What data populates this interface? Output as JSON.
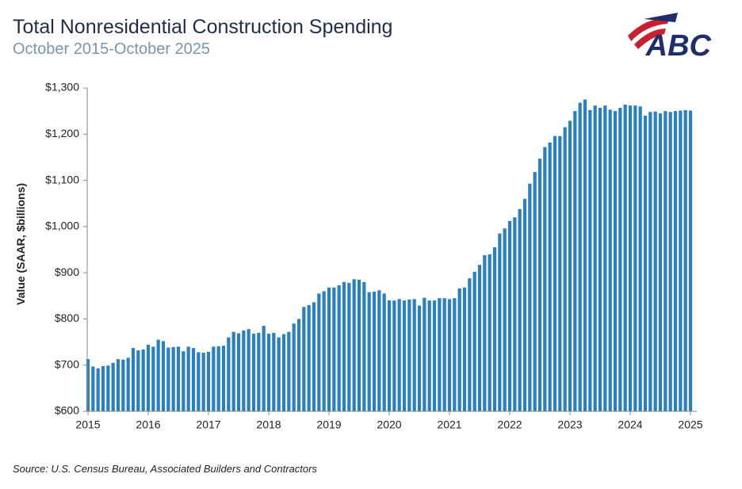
{
  "chart_data": {
    "type": "bar",
    "title": "Total Nonresidential Construction Spending",
    "subtitle": "October 2015-October 2025",
    "y_label": "Value (SAAR, $billions)",
    "source": "Source: U.S. Census Bureau, Associated Builders and Contractors",
    "logo": "ABC",
    "color": "#2a7fbf",
    "categories": [
      "2015",
      null,
      null,
      null,
      null,
      null,
      null,
      null,
      null,
      null,
      null,
      null,
      "2016",
      null,
      null,
      null,
      null,
      null,
      null,
      null,
      null,
      null,
      null,
      null,
      "2017",
      null,
      null,
      null,
      null,
      null,
      null,
      null,
      null,
      null,
      null,
      null,
      "2018",
      null,
      null,
      null,
      null,
      null,
      null,
      null,
      null,
      null,
      null,
      null,
      "2019",
      null,
      null,
      null,
      null,
      null,
      null,
      null,
      null,
      null,
      null,
      null,
      "2020",
      null,
      null,
      null,
      null,
      null,
      null,
      null,
      null,
      null,
      null,
      null,
      "2021",
      null,
      null,
      null,
      null,
      null,
      null,
      null,
      null,
      null,
      null,
      null,
      "2022",
      null,
      null,
      null,
      null,
      null,
      null,
      null,
      null,
      null,
      null,
      null,
      "2023",
      null,
      null,
      null,
      null,
      null,
      null,
      null,
      null,
      null,
      null,
      null,
      "2024",
      null,
      null,
      null,
      null,
      null,
      null,
      null,
      null,
      null,
      null,
      null,
      "2025"
    ],
    "values": [
      713,
      697,
      693,
      698,
      699,
      705,
      713,
      712,
      716,
      737,
      732,
      734,
      744,
      740,
      755,
      752,
      738,
      739,
      740,
      730,
      740,
      737,
      728,
      727,
      729,
      740,
      741,
      742,
      760,
      772,
      769,
      775,
      778,
      768,
      770,
      785,
      768,
      770,
      760,
      767,
      772,
      790,
      800,
      826,
      830,
      836,
      855,
      860,
      868,
      868,
      873,
      880,
      878,
      886,
      885,
      880,
      858,
      859,
      862,
      855,
      840,
      840,
      843,
      840,
      842,
      843,
      829,
      846,
      840,
      840,
      845,
      845,
      843,
      845,
      866,
      868,
      888,
      902,
      917,
      938,
      940,
      955,
      985,
      996,
      1012,
      1020,
      1038,
      1060,
      1093,
      1118,
      1147,
      1172,
      1182,
      1196,
      1196,
      1215,
      1229,
      1250,
      1268,
      1275,
      1252,
      1262,
      1257,
      1262,
      1253,
      1250,
      1257,
      1264,
      1262,
      1262,
      1260,
      1240,
      1248,
      1249,
      1245,
      1250,
      1248,
      1250,
      1251,
      1252,
      1251
    ],
    "ylim": [
      600,
      1300
    ],
    "yticks": [
      {
        "value": 600,
        "label": "$600"
      },
      {
        "value": 700,
        "label": "$700"
      },
      {
        "value": 800,
        "label": "$800"
      },
      {
        "value": 900,
        "label": "$900"
      },
      {
        "value": 1000,
        "label": "$1,000"
      },
      {
        "value": 1100,
        "label": "$1,100"
      },
      {
        "value": 1200,
        "label": "$1,200"
      },
      {
        "value": 1300,
        "label": "$1,300"
      }
    ],
    "grid": false
  }
}
